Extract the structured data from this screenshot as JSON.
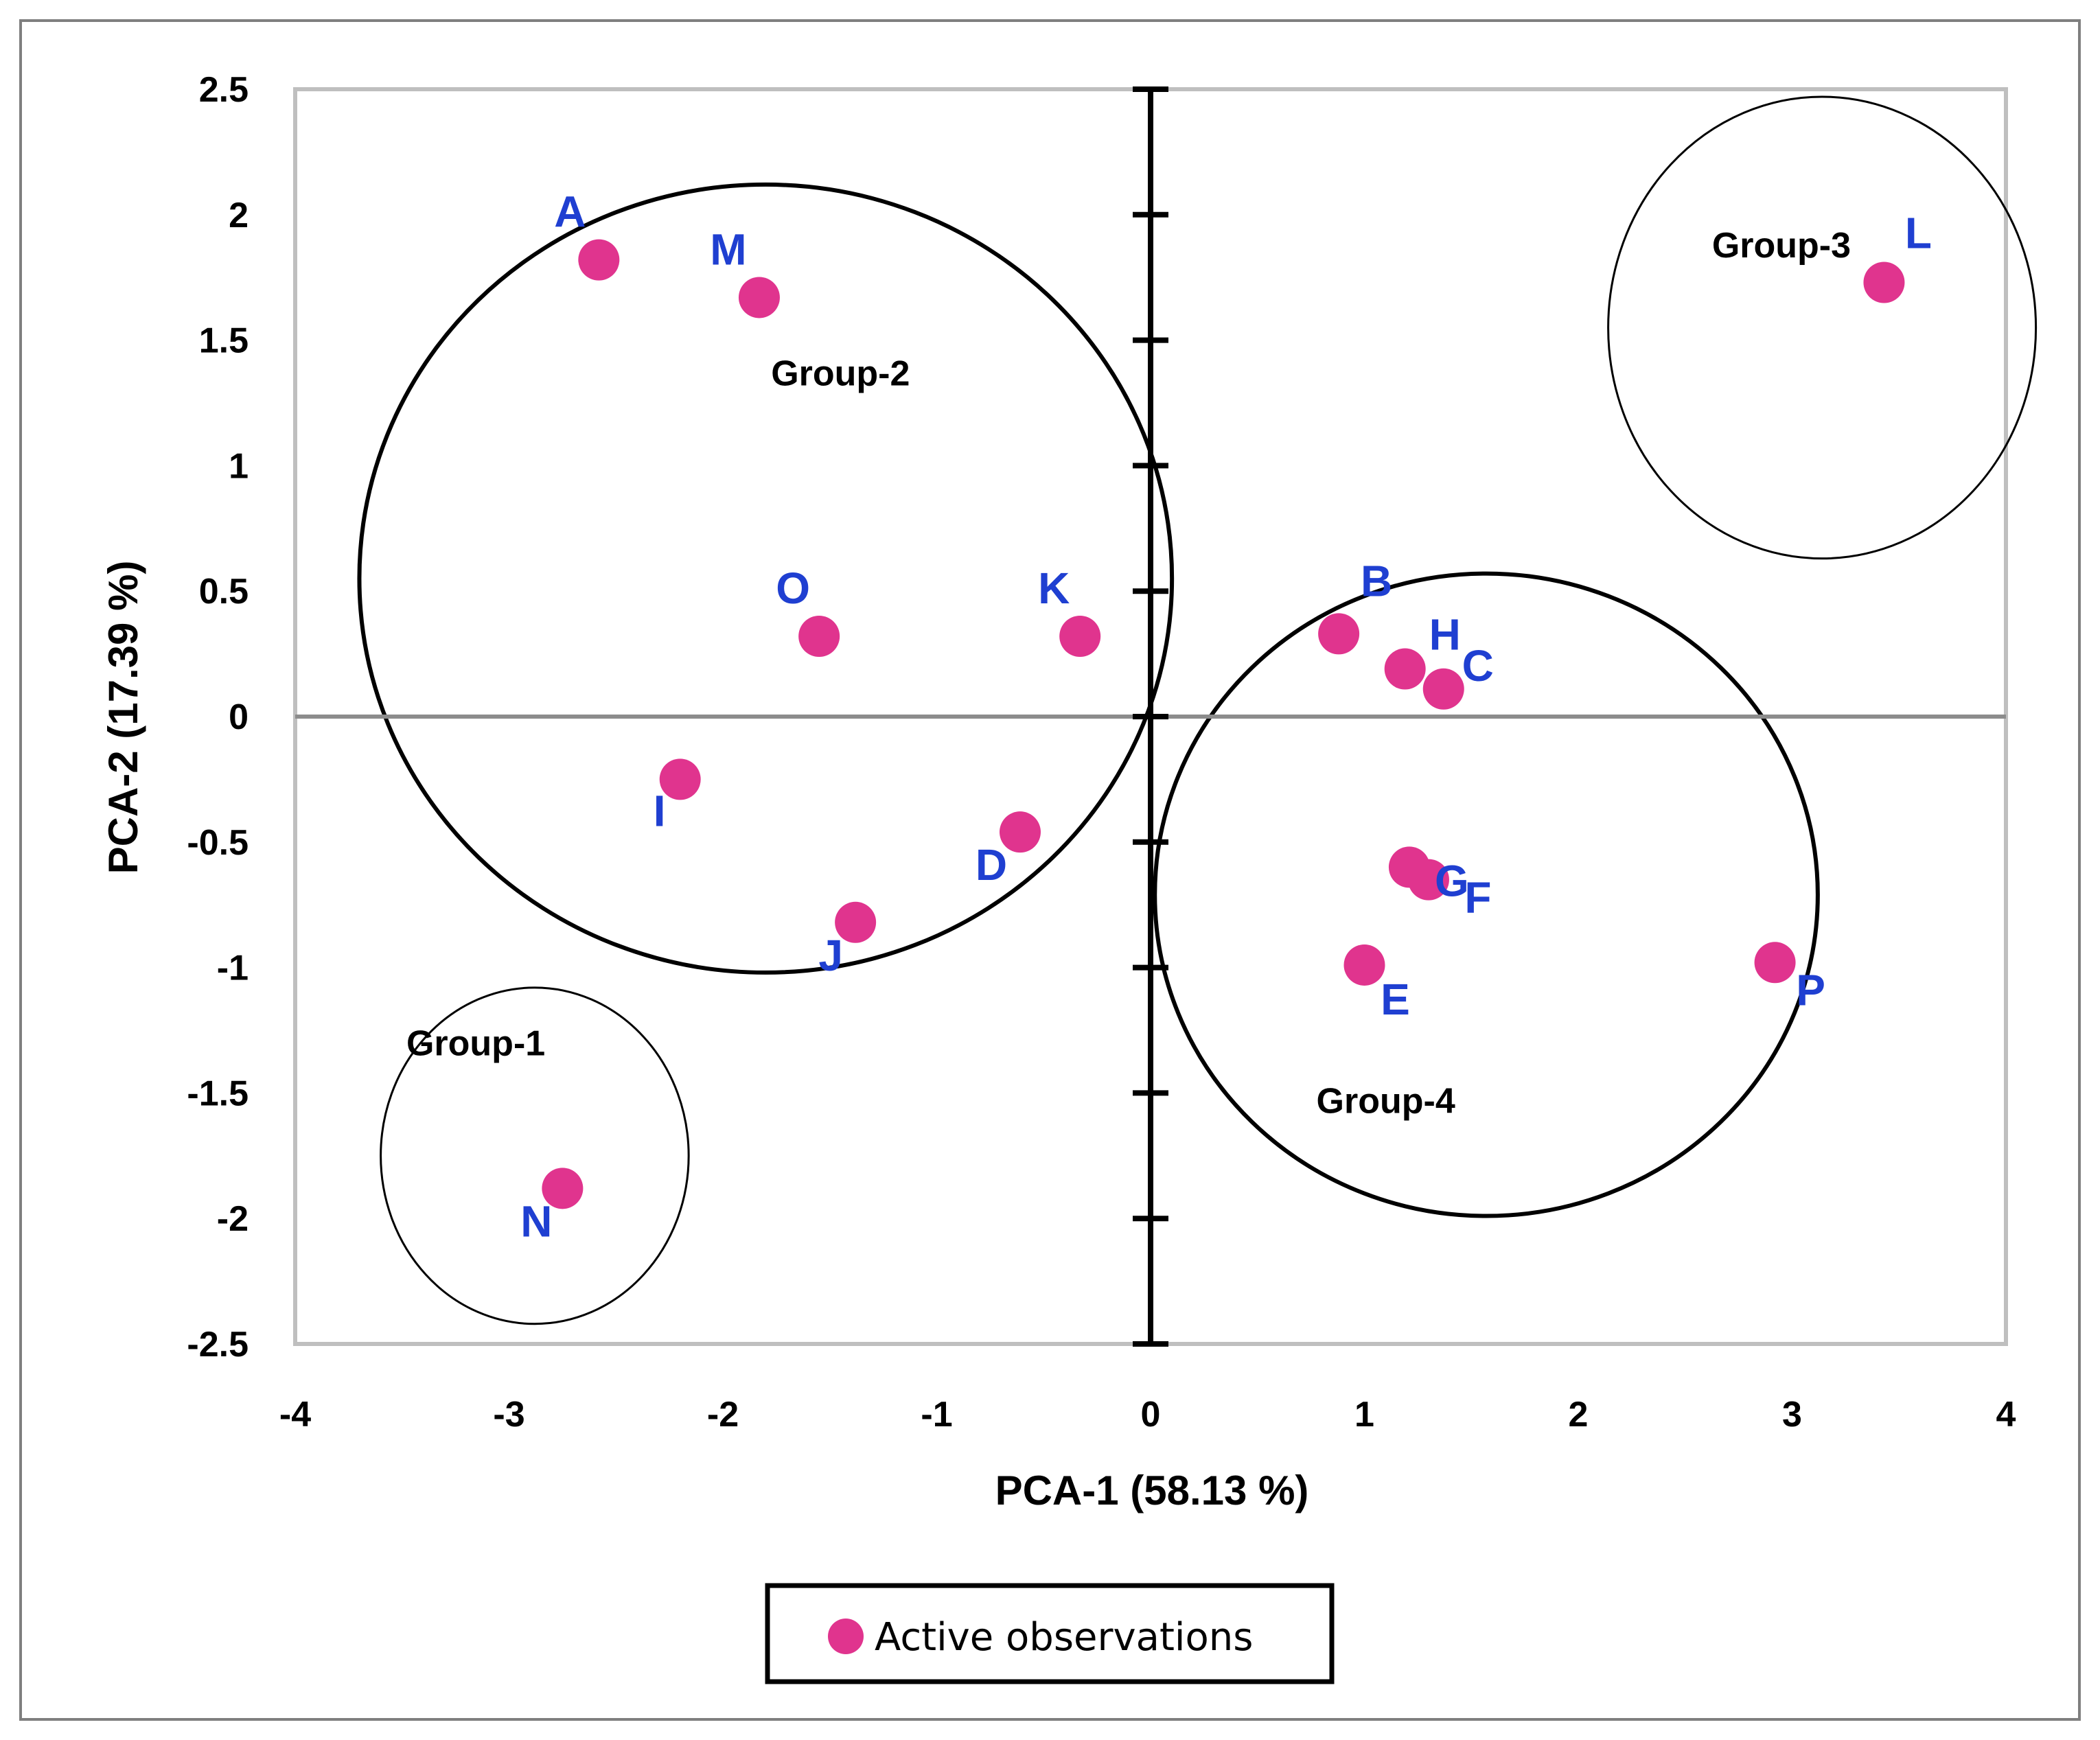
{
  "chart_data": {
    "type": "scatter",
    "xlabel": "PCA-1 (58.13 %)",
    "ylabel": "PCA-2 (17.39 %)",
    "xlim": [
      -4,
      4
    ],
    "ylim": [
      -2.5,
      2.5
    ],
    "xticks": [
      "-4",
      "-3",
      "-2",
      "-1",
      "0",
      "1",
      "2",
      "3",
      "4"
    ],
    "yticks": [
      "2.5",
      "2",
      "1.5",
      "1",
      "0.5",
      "0",
      "-0.5",
      "-1",
      "-1.5",
      "-2",
      "-2.5"
    ],
    "grid": false,
    "legend_position": "bottom",
    "colors": {
      "marker": "#e0348e",
      "point_label": "#1f3fd1",
      "frame": "#bfbfbf",
      "zero_line": "#8c8c8c"
    },
    "series": [
      {
        "name": "Active observations",
        "points": [
          {
            "label": "A",
            "x": -2.58,
            "y": 1.82
          },
          {
            "label": "M",
            "x": -1.83,
            "y": 1.67
          },
          {
            "label": "O",
            "x": -1.55,
            "y": 0.32
          },
          {
            "label": "K",
            "x": -0.33,
            "y": 0.32
          },
          {
            "label": "I",
            "x": -2.2,
            "y": -0.25
          },
          {
            "label": "D",
            "x": -0.61,
            "y": -0.46
          },
          {
            "label": "J",
            "x": -1.38,
            "y": -0.82
          },
          {
            "label": "N",
            "x": -2.75,
            "y": -1.88
          },
          {
            "label": "B",
            "x": 0.88,
            "y": 0.33
          },
          {
            "label": "H",
            "x": 1.19,
            "y": 0.19
          },
          {
            "label": "C",
            "x": 1.37,
            "y": 0.11
          },
          {
            "label": "G",
            "x": 1.21,
            "y": -0.6
          },
          {
            "label": "F",
            "x": 1.3,
            "y": -0.65
          },
          {
            "label": "E",
            "x": 1.0,
            "y": -0.99
          },
          {
            "label": "P",
            "x": 2.92,
            "y": -0.98
          },
          {
            "label": "L",
            "x": 3.43,
            "y": 1.73
          }
        ]
      }
    ],
    "groups": [
      {
        "name": "Group-1",
        "cx": -2.88,
        "cy": -1.75,
        "rx": 0.72,
        "ry": 0.67
      },
      {
        "name": "Group-2",
        "cx": -1.8,
        "cy": 0.55,
        "rx": 1.9,
        "ry": 1.57
      },
      {
        "name": "Group-3",
        "cx": 3.14,
        "cy": 1.55,
        "rx": 1.0,
        "ry": 0.92
      },
      {
        "name": "Group-4",
        "cx": 1.57,
        "cy": -0.71,
        "rx": 1.55,
        "ry": 1.28
      }
    ]
  }
}
